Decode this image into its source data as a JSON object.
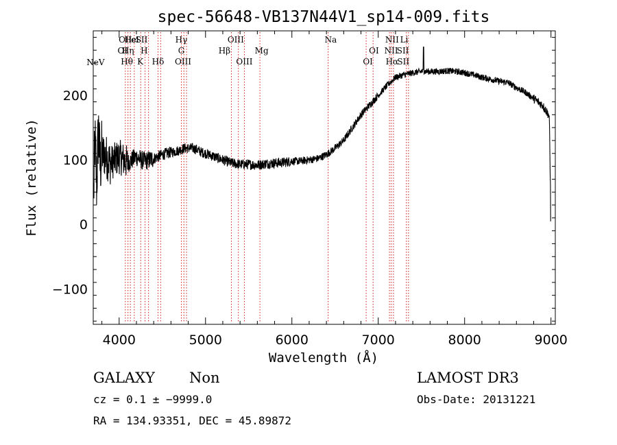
{
  "chart_data": {
    "type": "line",
    "title": "spec-56648-VB137N44V1_sp14-009.fits",
    "xlabel": "Wavelength (Å)",
    "ylabel": "Flux (relative)",
    "xlim": [
      3700,
      9050
    ],
    "ylim": [
      -155,
      300
    ],
    "x_ticks": [
      4000,
      5000,
      6000,
      7000,
      8000,
      9000
    ],
    "y_ticks": [
      -100,
      0,
      100,
      200
    ],
    "series": [
      {
        "name": "flux",
        "x": [
          3700,
          3720,
          3740,
          3760,
          3780,
          3800,
          3850,
          3900,
          3950,
          4000,
          4050,
          4100,
          4150,
          4200,
          4250,
          4300,
          4350,
          4400,
          4450,
          4500,
          4550,
          4600,
          4650,
          4700,
          4750,
          4800,
          4850,
          4900,
          4950,
          5000,
          5100,
          5200,
          5300,
          5400,
          5500,
          5600,
          5700,
          5800,
          5900,
          6000,
          6100,
          6200,
          6300,
          6400,
          6500,
          6600,
          6700,
          6800,
          6900,
          7000,
          7100,
          7200,
          7300,
          7400,
          7500,
          7600,
          7700,
          7800,
          7900,
          8000,
          8100,
          8200,
          8300,
          8400,
          8500,
          8600,
          8700,
          8800,
          8900,
          8950,
          8980,
          9000
        ],
        "y": [
          20,
          130,
          60,
          150,
          90,
          110,
          105,
          95,
          100,
          105,
          100,
          95,
          100,
          105,
          100,
          98,
          100,
          102,
          105,
          108,
          110,
          112,
          113,
          115,
          118,
          118,
          118,
          116,
          112,
          110,
          105,
          100,
          95,
          93,
          93,
          92,
          94,
          95,
          96,
          98,
          98,
          100,
          102,
          108,
          118,
          130,
          150,
          170,
          185,
          200,
          215,
          228,
          232,
          235,
          237,
          237,
          237,
          238,
          237,
          235,
          232,
          228,
          225,
          222,
          220,
          212,
          205,
          195,
          185,
          175,
          168,
          5
        ]
      }
    ],
    "line_labels": [
      {
        "row": 4,
        "w": 3727,
        "text": "NeV"
      },
      {
        "row": 1,
        "w": 4071,
        "text": "OII"
      },
      {
        "row": 1,
        "w": 4130,
        "text": "He"
      },
      {
        "row": 1,
        "w": 4185,
        "text": "eI"
      },
      {
        "row": 1,
        "w": 4260,
        "text": "SII"
      },
      {
        "row": 1,
        "w": 4720,
        "text": "Hγ"
      },
      {
        "row": 1,
        "w": 5350,
        "text": "OIII"
      },
      {
        "row": 1,
        "w": 6450,
        "text": "Na"
      },
      {
        "row": 1,
        "w": 7160,
        "text": "NII"
      },
      {
        "row": 1,
        "w": 7300,
        "text": "Li"
      },
      {
        "row": 2,
        "w": 4040,
        "text": "OI"
      },
      {
        "row": 2,
        "w": 4102,
        "text": "Hη"
      },
      {
        "row": 2,
        "w": 4290,
        "text": "H"
      },
      {
        "row": 2,
        "w": 4720,
        "text": "G"
      },
      {
        "row": 2,
        "w": 5220,
        "text": "Hβ"
      },
      {
        "row": 2,
        "w": 5650,
        "text": "Mg"
      },
      {
        "row": 2,
        "w": 6950,
        "text": "OI"
      },
      {
        "row": 2,
        "w": 7150,
        "text": "NII"
      },
      {
        "row": 2,
        "w": 7285,
        "text": "SII"
      },
      {
        "row": 3,
        "w": 4090,
        "text": "Hθ"
      },
      {
        "row": 3,
        "w": 4245,
        "text": "K"
      },
      {
        "row": 3,
        "w": 4450,
        "text": "Hδ"
      },
      {
        "row": 3,
        "w": 4740,
        "text": "OIII"
      },
      {
        "row": 3,
        "w": 5450,
        "text": "OIII"
      },
      {
        "row": 3,
        "w": 6880,
        "text": "OI"
      },
      {
        "row": 3,
        "w": 7160,
        "text": "Hα"
      },
      {
        "row": 3,
        "w": 7290,
        "text": "SII"
      }
    ],
    "line_positions": [
      4072,
      4102,
      4130,
      4175,
      4250,
      4300,
      4340,
      4450,
      4480,
      4720,
      4750,
      4780,
      5300,
      5380,
      5450,
      5630,
      6420,
      6860,
      6940,
      7130,
      7150,
      7175,
      7325,
      7350
    ]
  },
  "footer": {
    "class_label": "GALAXY",
    "subclass": "Non",
    "survey": "LAMOST DR3",
    "redshift": "cz = 0.1 ± −9999.0",
    "obs_date": "Obs-Date: 20131221",
    "coords": "RA = 134.93351, DEC =  45.89872"
  }
}
